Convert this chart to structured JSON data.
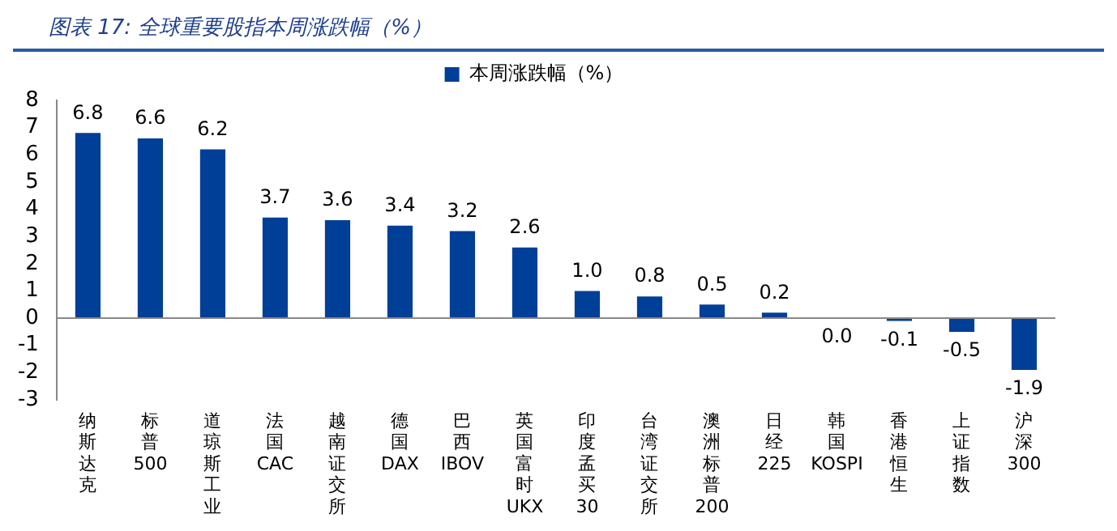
{
  "chart_data": {
    "type": "bar",
    "title": "图表 17:  全球重要股指本周涨跌幅（%）",
    "categories": [
      "纳斯达克",
      "标普500",
      "道琼斯工业",
      "法国CAC",
      "越南证交所",
      "德国DAX",
      "巴西IBOV",
      "英国富时UKX",
      "印度孟买30",
      "台湾证交所",
      "澳洲标普200",
      "日经225",
      "韩国KOSPI",
      "香港恒生",
      "上证指数",
      "沪深300"
    ],
    "series": [
      {
        "name": "本周涨跌幅（%）",
        "color": "#003f98",
        "values": [
          6.8,
          6.6,
          6.2,
          3.7,
          3.6,
          3.4,
          3.2,
          2.6,
          1,
          0.8,
          0.5,
          0.2,
          0,
          -0.1,
          -0.5,
          -1.9
        ],
        "value_labels": [
          "6.8",
          "6.6",
          "6.2",
          "3.7",
          "3.6",
          "3.4",
          "3.2",
          "2.6",
          "1.0",
          "0.8",
          "0.5",
          "0.2",
          "0.0",
          "-0.1",
          "-0.5",
          "-1.9"
        ]
      }
    ],
    "ylim": [
      -3,
      8
    ],
    "yticks": [
      -3,
      -2,
      -1,
      0,
      1,
      2,
      3,
      4,
      5,
      6,
      7,
      8
    ],
    "grid": false,
    "legend": "top",
    "ref_lines": [
      {
        "axis": "y",
        "value": 0,
        "color": "#888888"
      }
    ]
  }
}
